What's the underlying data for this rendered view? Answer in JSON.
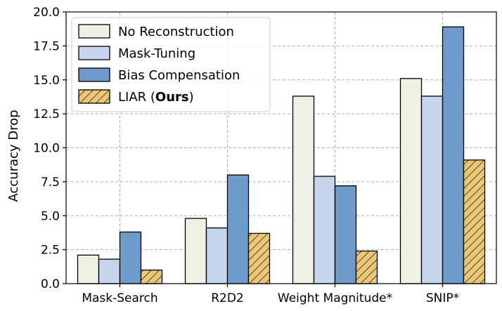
{
  "chart_data": {
    "type": "bar",
    "ylabel": "Accuracy Drop",
    "xlabel": "",
    "ylim": [
      0,
      20
    ],
    "yticks": [
      0,
      2.5,
      5,
      7.5,
      10,
      12.5,
      15,
      17.5,
      20
    ],
    "ytick_labels": [
      "0.0",
      "2.5",
      "5.0",
      "7.5",
      "10.0",
      "12.5",
      "15.0",
      "17.5",
      "20.0"
    ],
    "grid": true,
    "legend_position": "top-left",
    "categories": [
      "Mask-Search",
      "R2D2",
      "Weight Magnitude*",
      "SNIP*"
    ],
    "series": [
      {
        "name": "No Reconstruction",
        "color": "#f0f0e4",
        "hatch": false,
        "values": [
          2.1,
          4.8,
          13.8,
          15.1
        ]
      },
      {
        "name": "Mask-Tuning",
        "color": "#c6d5ec",
        "hatch": false,
        "values": [
          1.8,
          4.1,
          7.9,
          13.8
        ]
      },
      {
        "name": "Bias Compensation",
        "color": "#6e9bc9",
        "hatch": false,
        "values": [
          3.8,
          8.0,
          7.2,
          18.9
        ]
      },
      {
        "name": "LIAR (Ours)",
        "name_prefix": "LIAR (",
        "name_bold": "Ours",
        "name_suffix": ")",
        "color": "#ecc777",
        "hatch": true,
        "values": [
          1.0,
          3.7,
          2.4,
          9.1
        ]
      }
    ]
  }
}
